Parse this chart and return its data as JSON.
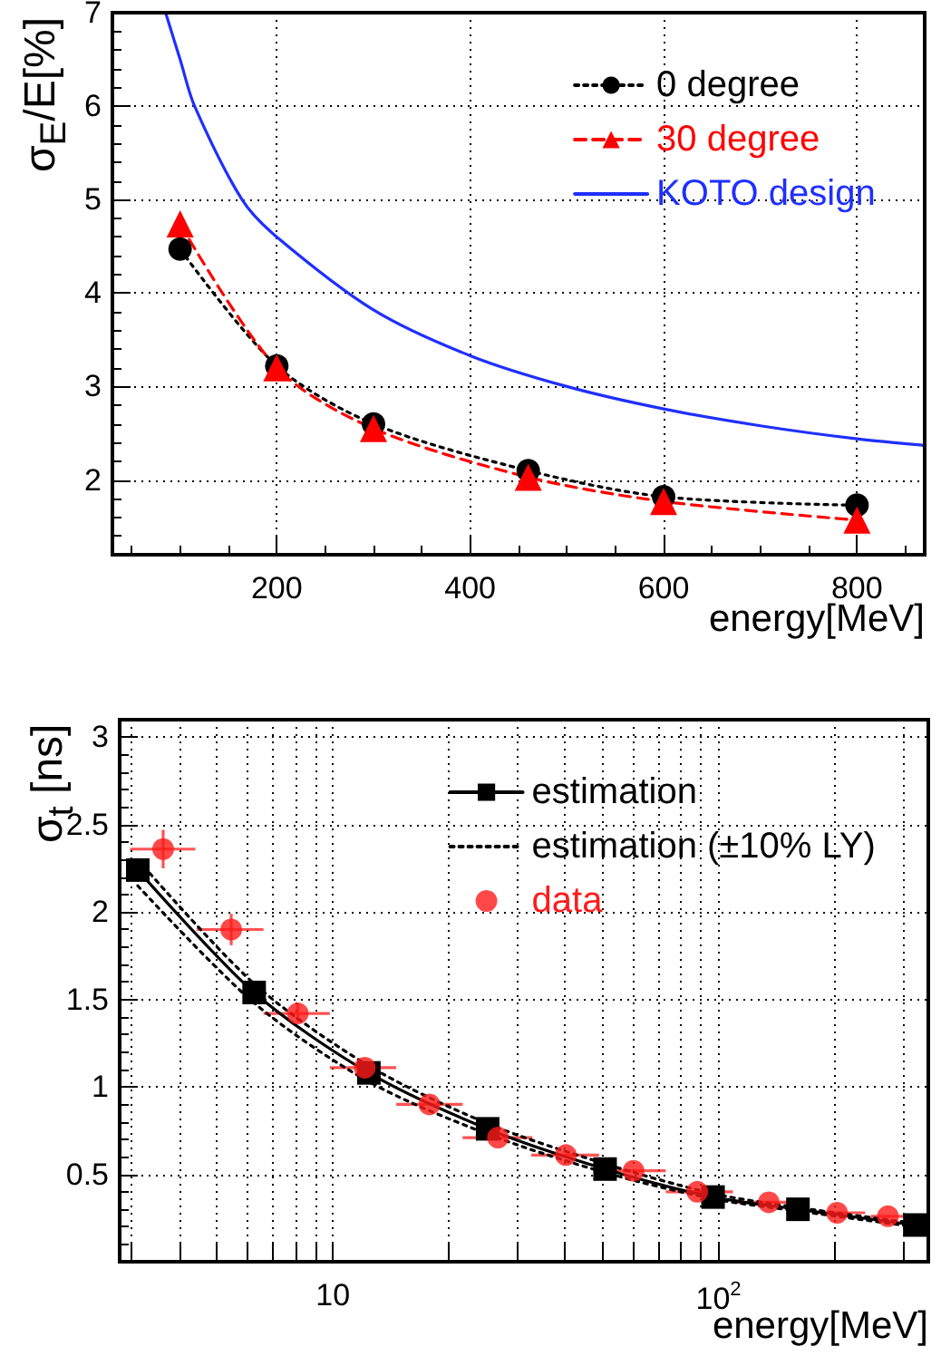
{
  "chart_data": [
    {
      "type": "line",
      "xlabel": "energy[MeV]",
      "ylabel": "σ$_{E}$/E[%]",
      "xlim": [
        30,
        870
      ],
      "xticks": [
        200,
        400,
        600,
        800
      ],
      "ylim": [
        1.2,
        7
      ],
      "yticks": [
        2,
        3,
        4,
        5,
        6,
        7
      ],
      "grid": true,
      "legend": "top right",
      "series": [
        {
          "name": "0 degree",
          "color": "#000000",
          "marker": "circle",
          "line_style": "dotted",
          "x": [
            100,
            200,
            300,
            460,
            600,
            800
          ],
          "values": [
            4.47,
            3.22,
            2.6,
            2.1,
            1.82,
            1.73
          ]
        },
        {
          "name": "30 degree",
          "color": "#ff0000",
          "marker": "triangle",
          "line_style": "dashed",
          "x": [
            100,
            200,
            300,
            460,
            600,
            800
          ],
          "values": [
            4.74,
            3.2,
            2.55,
            2.03,
            1.77,
            1.57
          ]
        },
        {
          "name": "KOTO design",
          "color": "#1f2fff",
          "marker": "none",
          "line_style": "solid",
          "x": [
            85,
            100,
            115,
            164,
            200,
            300,
            400,
            500,
            600,
            700,
            800,
            870
          ],
          "values": [
            7,
            6.5,
            6.0,
            5.0,
            4.6,
            3.82,
            3.33,
            3.0,
            2.76,
            2.58,
            2.44,
            2.37
          ]
        }
      ]
    },
    {
      "type": "line",
      "xlabel": "energy[MeV]",
      "ylabel": "σ$_{t}$ [ns]",
      "log": "x",
      "xlim": [
        2.8,
        350
      ],
      "xticks": [
        {
          "value": 3,
          "label": null
        },
        {
          "value": 4,
          "label": null
        },
        {
          "value": 5,
          "label": null
        },
        {
          "value": 6,
          "label": null
        },
        {
          "value": 7,
          "label": null
        },
        {
          "value": 8,
          "label": null
        },
        {
          "value": 9,
          "label": null
        },
        {
          "value": 10,
          "label": "10"
        },
        {
          "value": 20,
          "label": null
        },
        {
          "value": 30,
          "label": null
        },
        {
          "value": 40,
          "label": null
        },
        {
          "value": 50,
          "label": null
        },
        {
          "value": 60,
          "label": null
        },
        {
          "value": 70,
          "label": null
        },
        {
          "value": 80,
          "label": null
        },
        {
          "value": 90,
          "label": null
        },
        {
          "value": 100,
          "label": "10$^{2}$"
        },
        {
          "value": 200,
          "label": null
        },
        {
          "value": 300,
          "label": null
        }
      ],
      "ylim": [
        0,
        3.1
      ],
      "yticks": [
        0.5,
        1,
        1.5,
        2,
        2.5,
        3
      ],
      "grid": true,
      "legend": "top right",
      "series": [
        {
          "name": "estimation",
          "color": "#000000",
          "marker": "square",
          "line_style": "solid",
          "x": [
            3.12,
            6.25,
            12.4,
            25.2,
            50.8,
            96.8,
            160.7,
            323
          ],
          "values": [
            2.24,
            1.54,
            1.08,
            0.76,
            0.53,
            0.37,
            0.3,
            0.21
          ]
        },
        {
          "name": "estimation (±10% LY)",
          "color": "#000000",
          "marker": "none",
          "line_style": "dotted",
          "x": [
            3.12,
            6.25,
            12.4,
            25.2,
            50.8,
            96.8,
            160.7,
            323
          ],
          "values": [
            2.3,
            1.59,
            1.12,
            0.79,
            0.56,
            0.39,
            0.31,
            0.22
          ]
        },
        {
          "color": "#000000",
          "marker": "none",
          "line_style": "dotted",
          "x": [
            3.12,
            6.25,
            12.4,
            25.2,
            50.8,
            96.8,
            160.7,
            323
          ],
          "values": [
            2.15,
            1.48,
            1.03,
            0.73,
            0.51,
            0.36,
            0.29,
            0.2
          ]
        },
        {
          "name": "data",
          "type": "scatter",
          "color": "#ff1a1a",
          "marker": "circle",
          "x": [
            3.63,
            5.45,
            8.11,
            12.1,
            17.8,
            26.8,
            40.2,
            60.2,
            88.1,
            135,
            203,
            275
          ],
          "values": [
            2.36,
            1.9,
            1.42,
            1.11,
            0.9,
            0.71,
            0.61,
            0.52,
            0.4,
            0.34,
            0.28,
            0.26
          ],
          "errors": [
            [
              2.25,
              2.47
            ],
            [
              1.81,
              1.99
            ],
            [
              1.37,
              1.48
            ],
            null,
            null,
            null,
            null,
            null,
            null,
            null,
            null,
            null
          ],
          "xerrors": [
            [
              2.98,
              4.4
            ],
            [
              4.43,
              6.61
            ],
            [
              6.61,
              9.82
            ],
            [
              9.82,
              14.6
            ],
            [
              14.6,
              21.7
            ],
            [
              21.7,
              32.9
            ],
            [
              32.7,
              49
            ],
            [
              49,
              73
            ],
            [
              73,
              109
            ],
            [
              109,
              152
            ],
            [
              175,
              240
            ],
            [
              248,
              345
            ]
          ]
        }
      ]
    }
  ]
}
